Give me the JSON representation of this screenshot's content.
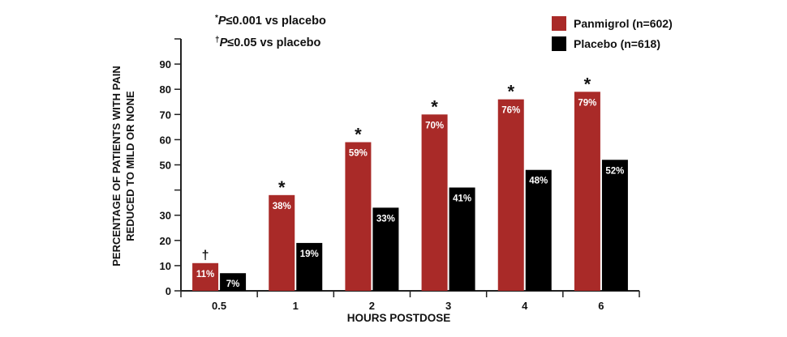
{
  "footnotes": [
    {
      "symbol": "*",
      "p": "P",
      "text": "≤0.001 vs placebo"
    },
    {
      "symbol": "†",
      "p": "P",
      "text": "≤0.05 vs placebo"
    }
  ],
  "chart_data": {
    "type": "bar",
    "categories": [
      "0.5",
      "1",
      "2",
      "3",
      "4",
      "6"
    ],
    "series": [
      {
        "name": "Panmigrol (n=602)",
        "color": "#a92a28",
        "values": [
          11,
          38,
          59,
          70,
          76,
          79
        ],
        "labels": [
          "11%",
          "38%",
          "59%",
          "70%",
          "76%",
          "79%"
        ],
        "markers": [
          "†",
          "*",
          "*",
          "*",
          "*",
          "*"
        ]
      },
      {
        "name": "Placebo (n=618)",
        "color": "#000000",
        "values": [
          7,
          19,
          33,
          41,
          48,
          52
        ],
        "labels": [
          "7%",
          "19%",
          "33%",
          "41%",
          "48%",
          "52%"
        ]
      }
    ],
    "xlabel": "HOURS POSTDOSE",
    "ylabel": [
      "PERCENTAGE OF PATIENTS WITH PAIN",
      "REDUCED TO MILD OR NONE"
    ],
    "yticks": [
      "0",
      "10",
      "20",
      "30",
      "",
      "50",
      "60",
      "70",
      "80",
      "90",
      ""
    ],
    "ylim": [
      0,
      100
    ],
    "legend_position": "top-right",
    "grid": false
  }
}
